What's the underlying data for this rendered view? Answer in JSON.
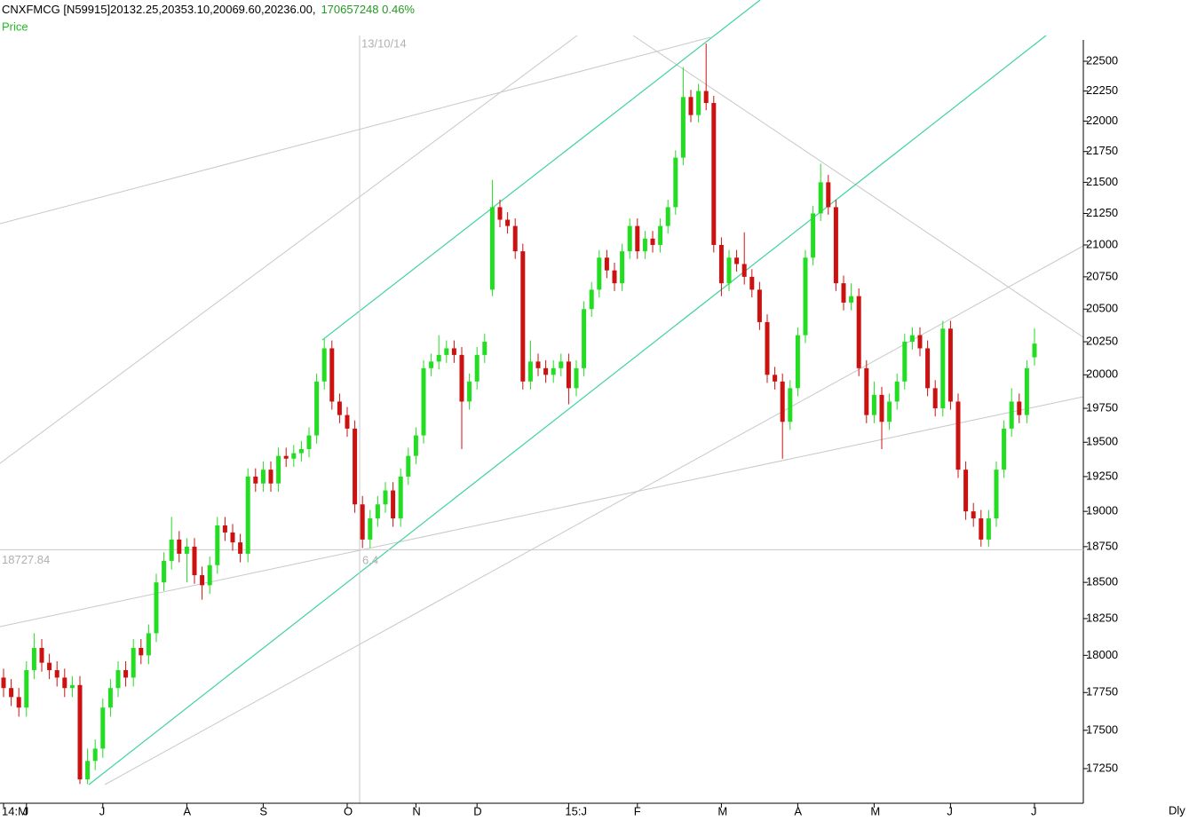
{
  "chart_data": {
    "type": "candlestick",
    "title": "CNXFMCG [N59915]20132.25,20353.10,20069.60,20236.00,",
    "title_extra": "170657248  0.46%",
    "subtitle": "Price",
    "period": "Dly",
    "log_scale": true,
    "up_color": "#22dd22",
    "down_color": "#cc1111",
    "ylim": [
      17027,
      22681
    ],
    "yticks": [
      17250,
      17500,
      17750,
      18000,
      18250,
      18500,
      18750,
      19000,
      19250,
      19500,
      19750,
      20000,
      20250,
      20500,
      20750,
      21000,
      21250,
      21500,
      21750,
      22000,
      22250,
      22500
    ],
    "cursor": {
      "date": "13/10/14",
      "price": 18727.84,
      "ratio": "6,4"
    },
    "categories": [
      "14:M",
      null,
      null,
      "J",
      null,
      null,
      null,
      null,
      null,
      null,
      null,
      null,
      null,
      "J",
      null,
      null,
      null,
      null,
      null,
      null,
      null,
      null,
      null,
      null,
      "A",
      null,
      null,
      null,
      null,
      null,
      null,
      null,
      null,
      null,
      "S",
      null,
      null,
      null,
      null,
      null,
      null,
      null,
      null,
      null,
      null,
      "O",
      null,
      null,
      null,
      null,
      null,
      null,
      null,
      null,
      "N",
      null,
      null,
      null,
      null,
      null,
      null,
      null,
      "D",
      null,
      null,
      null,
      null,
      null,
      null,
      null,
      null,
      null,
      null,
      null,
      "15:J",
      null,
      null,
      null,
      null,
      null,
      null,
      null,
      null,
      "F",
      null,
      null,
      null,
      null,
      null,
      null,
      null,
      null,
      null,
      null,
      "M",
      null,
      null,
      null,
      null,
      null,
      null,
      null,
      null,
      null,
      "A",
      null,
      null,
      null,
      null,
      null,
      null,
      null,
      null,
      null,
      "M",
      null,
      null,
      null,
      null,
      null,
      null,
      null,
      null,
      null,
      "J",
      null,
      null,
      null,
      null,
      null,
      null,
      null,
      null,
      null,
      null,
      "J"
    ],
    "open": [
      17850,
      17780,
      17720,
      17650,
      17900,
      18050,
      17950,
      17900,
      17850,
      17780,
      17800,
      17180,
      17300,
      17380,
      17650,
      17780,
      17900,
      17850,
      18050,
      18000,
      18150,
      18500,
      18650,
      18800,
      18700,
      18750,
      18550,
      18480,
      18620,
      18900,
      18850,
      18780,
      18700,
      19250,
      19200,
      19300,
      19200,
      19400,
      19380,
      19420,
      19450,
      19550,
      19950,
      20200,
      19800,
      19700,
      19600,
      19050,
      18800,
      18950,
      19050,
      19150,
      18950,
      19250,
      19400,
      19550,
      20050,
      20100,
      20150,
      20200,
      20150,
      19800,
      19950,
      20150,
      20650,
      21300,
      21200,
      21150,
      20950,
      19950,
      20100,
      20050,
      20000,
      20050,
      20100,
      19900,
      20050,
      20500,
      20650,
      20900,
      20800,
      20700,
      20950,
      21150,
      20950,
      21050,
      21000,
      21150,
      21300,
      21700,
      22200,
      22050,
      22250,
      22150,
      21000,
      20700,
      20900,
      20850,
      20750,
      20650,
      20400,
      20000,
      19950,
      19650,
      19900,
      20300,
      20900,
      21250,
      21500,
      21300,
      20700,
      20550,
      20600,
      20050,
      19700,
      19850,
      19650,
      19800,
      19950,
      20250,
      20300,
      20200,
      19900,
      19750,
      20350,
      19800,
      19300,
      19000,
      18950,
      18800,
      18950,
      19300,
      19600,
      19800,
      19700,
      20132.25
    ],
    "high": [
      17910,
      17840,
      17780,
      17960,
      18150,
      18110,
      18010,
      17960,
      17910,
      17860,
      17860,
      17380,
      17440,
      17710,
      17840,
      17960,
      17960,
      18110,
      18110,
      18210,
      18560,
      18710,
      18960,
      18860,
      18810,
      18810,
      18610,
      18680,
      18960,
      18960,
      18910,
      18840,
      19310,
      19310,
      19360,
      19360,
      19460,
      19460,
      19480,
      19510,
      19610,
      20010,
      20270,
      20260,
      19860,
      19760,
      19660,
      19110,
      19010,
      19110,
      19210,
      19210,
      19310,
      19460,
      19610,
      20110,
      20160,
      20300,
      20260,
      20260,
      20210,
      20010,
      20210,
      20310,
      21520,
      21360,
      21260,
      21210,
      21010,
      20260,
      20160,
      20110,
      20110,
      20160,
      20160,
      20110,
      20560,
      20710,
      20960,
      20960,
      20860,
      21010,
      21210,
      21210,
      21110,
      21110,
      21210,
      21360,
      21760,
      22450,
      22260,
      22310,
      22650,
      22210,
      21060,
      20960,
      20960,
      21100,
      20810,
      20710,
      20460,
      20060,
      20010,
      19960,
      20360,
      20960,
      21310,
      21650,
      21560,
      21360,
      20760,
      20700,
      20660,
      20110,
      19950,
      19910,
      19860,
      20010,
      20310,
      20360,
      20360,
      20260,
      19960,
      20410,
      20410,
      19860,
      19360,
      19060,
      19010,
      19010,
      19360,
      19660,
      19900,
      19860,
      20110,
      20353.1
    ],
    "low": [
      17720,
      17660,
      17590,
      17590,
      17840,
      17890,
      17840,
      17790,
      17720,
      17720,
      17150,
      17150,
      17240,
      17320,
      17590,
      17720,
      17790,
      17790,
      17940,
      17940,
      18090,
      18440,
      18590,
      18640,
      18500,
      18490,
      18380,
      18420,
      18560,
      18790,
      18720,
      18640,
      18640,
      19140,
      19140,
      19140,
      19140,
      19320,
      19320,
      19360,
      19390,
      19490,
      19890,
      19740,
      19640,
      19540,
      18990,
      18740,
      18740,
      18890,
      18990,
      18890,
      18890,
      19190,
      19340,
      19490,
      19990,
      20040,
      20090,
      20090,
      19450,
      19740,
      19890,
      20090,
      20600,
      21140,
      21090,
      20890,
      19890,
      19890,
      19990,
      19940,
      19940,
      19990,
      19780,
      19840,
      19990,
      20440,
      20590,
      20740,
      20640,
      20640,
      20890,
      20890,
      20890,
      20940,
      20940,
      21090,
      21240,
      21640,
      21990,
      21990,
      22090,
      20940,
      20600,
      20640,
      20790,
      20690,
      20590,
      20340,
      19940,
      19890,
      19380,
      19590,
      19840,
      20240,
      20840,
      21190,
      21240,
      20640,
      20490,
      20490,
      19990,
      19640,
      19640,
      19450,
      19590,
      19740,
      19890,
      20190,
      20140,
      19840,
      19690,
      19690,
      19740,
      19240,
      18940,
      18890,
      18750,
      18750,
      18890,
      19240,
      19540,
      19640,
      19640,
      20069.6
    ],
    "close": [
      17780,
      17720,
      17650,
      17900,
      18050,
      17950,
      17900,
      17850,
      17780,
      17800,
      17180,
      17300,
      17380,
      17650,
      17780,
      17900,
      17850,
      18050,
      18000,
      18150,
      18500,
      18650,
      18800,
      18700,
      18750,
      18550,
      18480,
      18620,
      18900,
      18850,
      18780,
      18700,
      19250,
      19200,
      19300,
      19200,
      19400,
      19380,
      19420,
      19450,
      19550,
      19950,
      20200,
      19800,
      19700,
      19600,
      19050,
      18800,
      18950,
      19050,
      19150,
      18950,
      19250,
      19400,
      19550,
      20050,
      20100,
      20150,
      20200,
      20150,
      19800,
      19950,
      20150,
      20250,
      21300,
      21200,
      21150,
      20950,
      19950,
      20100,
      20050,
      20000,
      20050,
      20100,
      19900,
      20050,
      20500,
      20650,
      20900,
      20800,
      20700,
      20950,
      21150,
      20950,
      21050,
      21000,
      21150,
      21300,
      21700,
      22200,
      22050,
      22250,
      22150,
      21000,
      20700,
      20900,
      20850,
      20750,
      20650,
      20400,
      20000,
      19950,
      19650,
      19900,
      20300,
      20900,
      21250,
      21500,
      21300,
      20700,
      20550,
      20600,
      20050,
      19700,
      19850,
      19650,
      19800,
      19950,
      20250,
      20300,
      20200,
      19900,
      19750,
      20350,
      19800,
      19300,
      19000,
      18950,
      18800,
      18950,
      19300,
      19600,
      19800,
      19700,
      20050,
      20236
    ]
  }
}
